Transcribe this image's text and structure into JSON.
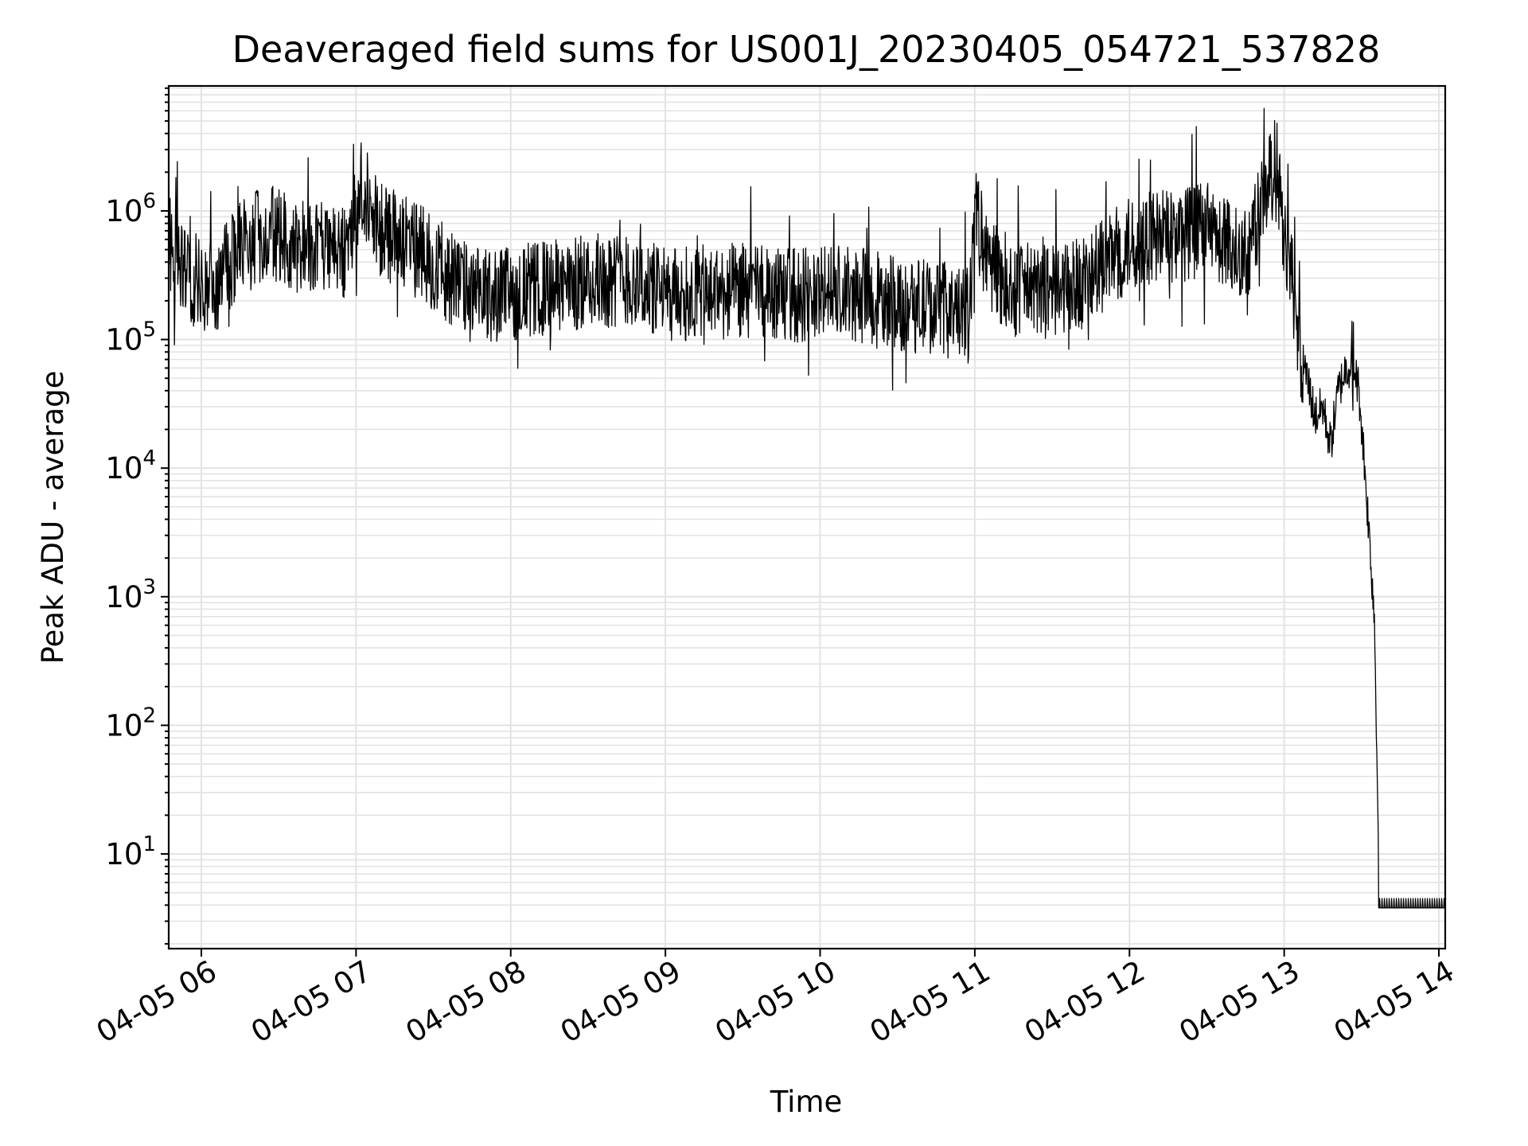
{
  "chart_data": {
    "type": "line",
    "title": "Deaveraged field sums for US001J_20230405_054721_537828",
    "xlabel": "Time",
    "ylabel": "Peak ADU - average",
    "y_scale": "log",
    "ylim": [
      1.8,
      9000000
    ],
    "xlim": [
      "2023-04-05 05:47:21",
      "2023-04-05 14:03:00"
    ],
    "grid": true,
    "line_color": "#000000",
    "grid_color": "#e3e3e3",
    "x_ticks": [
      {
        "value": "2023-04-05 06:00",
        "label": "04-05 06"
      },
      {
        "value": "2023-04-05 07:00",
        "label": "04-05 07"
      },
      {
        "value": "2023-04-05 08:00",
        "label": "04-05 08"
      },
      {
        "value": "2023-04-05 09:00",
        "label": "04-05 09"
      },
      {
        "value": "2023-04-05 10:00",
        "label": "04-05 10"
      },
      {
        "value": "2023-04-05 11:00",
        "label": "04-05 11"
      },
      {
        "value": "2023-04-05 12:00",
        "label": "04-05 12"
      },
      {
        "value": "2023-04-05 13:00",
        "label": "04-05 13"
      },
      {
        "value": "2023-04-05 14:00",
        "label": "04-05 14"
      }
    ],
    "y_ticks": [
      {
        "value": 10,
        "base": "10",
        "exp": "1"
      },
      {
        "value": 100,
        "base": "10",
        "exp": "2"
      },
      {
        "value": 1000,
        "base": "10",
        "exp": "3"
      },
      {
        "value": 10000,
        "base": "10",
        "exp": "4"
      },
      {
        "value": 100000,
        "base": "10",
        "exp": "5"
      },
      {
        "value": 1000000,
        "base": "10",
        "exp": "6"
      }
    ],
    "series": [
      {
        "points": [
          [
            "2023-04-05 05:47",
            600000
          ],
          [
            "2023-04-05 05:55",
            300000
          ],
          [
            "2023-04-05 06:05",
            250000
          ],
          [
            "2023-04-05 06:15",
            500000
          ],
          [
            "2023-04-05 06:25",
            700000
          ],
          [
            "2023-04-05 06:35",
            550000
          ],
          [
            "2023-04-05 06:45",
            500000
          ],
          [
            "2023-04-05 06:55",
            450000
          ],
          [
            "2023-04-05 07:02",
            1500000
          ],
          [
            "2023-04-05 07:10",
            700000
          ],
          [
            "2023-04-05 07:20",
            550000
          ],
          [
            "2023-04-05 07:30",
            400000
          ],
          [
            "2023-04-05 07:45",
            220000
          ],
          [
            "2023-04-05 08:00",
            230000
          ],
          [
            "2023-04-05 08:15",
            250000
          ],
          [
            "2023-04-05 08:30",
            280000
          ],
          [
            "2023-04-05 08:45",
            300000
          ],
          [
            "2023-04-05 09:00",
            220000
          ],
          [
            "2023-04-05 09:15",
            230000
          ],
          [
            "2023-04-05 09:30",
            240000
          ],
          [
            "2023-04-05 09:45",
            220000
          ],
          [
            "2023-04-05 10:00",
            230000
          ],
          [
            "2023-04-05 10:15",
            220000
          ],
          [
            "2023-04-05 10:30",
            190000
          ],
          [
            "2023-04-05 10:45",
            180000
          ],
          [
            "2023-04-05 10:58",
            150000
          ],
          [
            "2023-04-05 11:00",
            1000000
          ],
          [
            "2023-04-05 11:05",
            400000
          ],
          [
            "2023-04-05 11:15",
            250000
          ],
          [
            "2023-04-05 11:30",
            230000
          ],
          [
            "2023-04-05 11:45",
            300000
          ],
          [
            "2023-04-05 12:00",
            550000
          ],
          [
            "2023-04-05 12:15",
            650000
          ],
          [
            "2023-04-05 12:30",
            700000
          ],
          [
            "2023-04-05 12:45",
            450000
          ],
          [
            "2023-04-05 12:57",
            2500000
          ],
          [
            "2023-04-05 13:00",
            500000
          ],
          [
            "2023-04-05 13:03",
            300000
          ],
          [
            "2023-04-05 13:06",
            80000
          ],
          [
            "2023-04-05 13:09",
            50000
          ],
          [
            "2023-04-05 13:12",
            25000
          ],
          [
            "2023-04-05 13:15",
            30000
          ],
          [
            "2023-04-05 13:18",
            15000
          ],
          [
            "2023-04-05 13:21",
            40000
          ],
          [
            "2023-04-05 13:24",
            60000
          ],
          [
            "2023-04-05 13:27",
            65000
          ],
          [
            "2023-04-05 13:29",
            40000
          ],
          [
            "2023-04-05 13:31",
            12000
          ],
          [
            "2023-04-05 13:33",
            3000
          ],
          [
            "2023-04-05 13:35",
            700
          ],
          [
            "2023-04-05 13:37",
            3.8
          ],
          [
            "2023-04-05 14:03",
            3.8
          ]
        ]
      }
    ]
  }
}
